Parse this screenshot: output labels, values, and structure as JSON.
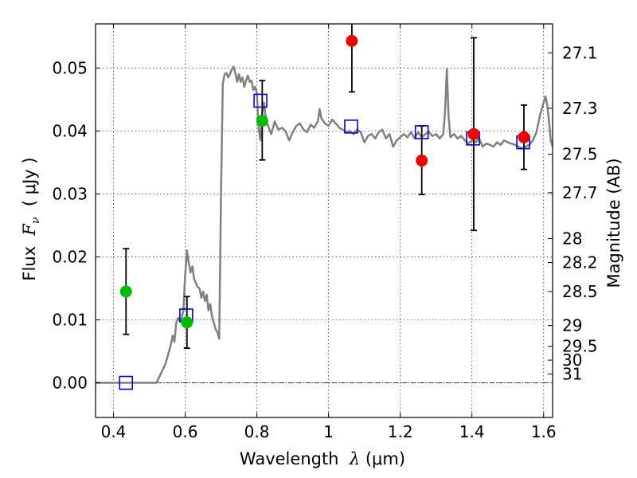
{
  "chart_data": {
    "type": "scatter",
    "xlabel_prefix": "Wavelength  ",
    "xlabel_symbol": "λ",
    "xlabel_unit": " (μm)",
    "ylabel_prefix": "Flux  ",
    "ylabel_symbol": "F",
    "ylabel_sub": "ν",
    "ylabel_unit": "  ( μJy )",
    "y2label": "Magnitude (AB)",
    "xlim": [
      0.35,
      1.625
    ],
    "ylim": [
      -0.0055,
      0.057
    ],
    "grid": true,
    "x_ticks": [
      0.4,
      0.6,
      0.8,
      1.0,
      1.2,
      1.4,
      1.6
    ],
    "x_tick_labels": [
      "0.4",
      "0.6",
      "0.8",
      "1",
      "1.2",
      "1.4",
      "1.6"
    ],
    "y_ticks": [
      0.0,
      0.01,
      0.02,
      0.03,
      0.04,
      0.05
    ],
    "y_tick_labels": [
      "0.00",
      "0.01",
      "0.02",
      "0.03",
      "0.04",
      "0.05"
    ],
    "y2_ticks": [
      {
        "label": "27.1",
        "flux": 0.0524
      },
      {
        "label": "27.3",
        "flux": 0.0436
      },
      {
        "label": "27.5",
        "flux": 0.0363
      },
      {
        "label": "27.7",
        "flux": 0.0302
      },
      {
        "label": "28",
        "flux": 0.0229
      },
      {
        "label": "28.2",
        "flux": 0.0191
      },
      {
        "label": "28.5",
        "flux": 0.0145
      },
      {
        "label": "29",
        "flux": 0.0091
      },
      {
        "label": "29.5",
        "flux": 0.0058
      },
      {
        "label": "30",
        "flux": 0.0036
      },
      {
        "label": "31",
        "flux": 0.0014
      }
    ],
    "colors": {
      "model": "#808080",
      "green": "#00bb00",
      "red": "#ee0000",
      "square": "#0000cc",
      "errorbar": "#000000"
    },
    "series": [
      {
        "kind": "line",
        "points": [
          [
            0.35,
            0.0
          ],
          [
            0.52,
            0.0
          ],
          [
            0.545,
            0.003
          ],
          [
            0.56,
            0.006
          ],
          [
            0.565,
            0.0075
          ],
          [
            0.57,
            0.0065
          ],
          [
            0.575,
            0.0095
          ],
          [
            0.58,
            0.0103
          ],
          [
            0.585,
            0.0098
          ],
          [
            0.59,
            0.0102
          ],
          [
            0.595,
            0.0115
          ],
          [
            0.6,
            0.017
          ],
          [
            0.605,
            0.021
          ],
          [
            0.61,
            0.019
          ],
          [
            0.615,
            0.0175
          ],
          [
            0.62,
            0.0185
          ],
          [
            0.625,
            0.0165
          ],
          [
            0.63,
            0.0158
          ],
          [
            0.635,
            0.0152
          ],
          [
            0.64,
            0.015
          ],
          [
            0.645,
            0.0135
          ],
          [
            0.65,
            0.0145
          ],
          [
            0.655,
            0.013
          ],
          [
            0.66,
            0.014
          ],
          [
            0.665,
            0.0115
          ],
          [
            0.67,
            0.0125
          ],
          [
            0.675,
            0.0105
          ],
          [
            0.68,
            0.0095
          ],
          [
            0.685,
            0.0085
          ],
          [
            0.69,
            0.008
          ],
          [
            0.695,
            0.007
          ],
          [
            0.7,
            0.03
          ],
          [
            0.705,
            0.0475
          ],
          [
            0.71,
            0.049
          ],
          [
            0.715,
            0.0492
          ],
          [
            0.72,
            0.0485
          ],
          [
            0.725,
            0.049
          ],
          [
            0.73,
            0.0498
          ],
          [
            0.735,
            0.0502
          ],
          [
            0.74,
            0.0492
          ],
          [
            0.745,
            0.0478
          ],
          [
            0.75,
            0.049
          ],
          [
            0.755,
            0.0478
          ],
          [
            0.76,
            0.0485
          ],
          [
            0.765,
            0.047
          ],
          [
            0.77,
            0.048
          ],
          [
            0.775,
            0.0488
          ],
          [
            0.78,
            0.0478
          ],
          [
            0.785,
            0.048
          ],
          [
            0.79,
            0.0465
          ],
          [
            0.795,
            0.047
          ],
          [
            0.8,
            0.046
          ],
          [
            0.805,
            0.0405
          ],
          [
            0.81,
            0.0385
          ],
          [
            0.815,
            0.043
          ],
          [
            0.82,
            0.0445
          ],
          [
            0.825,
            0.042
          ],
          [
            0.83,
            0.041
          ],
          [
            0.84,
            0.0395
          ],
          [
            0.85,
            0.0415
          ],
          [
            0.86,
            0.0402
          ],
          [
            0.87,
            0.0405
          ],
          [
            0.88,
            0.04
          ],
          [
            0.89,
            0.0385
          ],
          [
            0.9,
            0.0398
          ],
          [
            0.91,
            0.0408
          ],
          [
            0.92,
            0.0412
          ],
          [
            0.93,
            0.0402
          ],
          [
            0.94,
            0.0398
          ],
          [
            0.95,
            0.041
          ],
          [
            0.96,
            0.0405
          ],
          [
            0.97,
            0.0415
          ],
          [
            0.975,
            0.0435
          ],
          [
            0.98,
            0.042
          ],
          [
            0.99,
            0.0412
          ],
          [
            1.0,
            0.0408
          ],
          [
            1.01,
            0.0418
          ],
          [
            1.02,
            0.0412
          ],
          [
            1.03,
            0.0405
          ],
          [
            1.04,
            0.0402
          ],
          [
            1.05,
            0.0398
          ],
          [
            1.06,
            0.04
          ],
          [
            1.07,
            0.0395
          ],
          [
            1.08,
            0.0402
          ],
          [
            1.09,
            0.0398
          ],
          [
            1.1,
            0.0382
          ],
          [
            1.11,
            0.0392
          ],
          [
            1.12,
            0.0395
          ],
          [
            1.13,
            0.0388
          ],
          [
            1.14,
            0.0398
          ],
          [
            1.15,
            0.0402
          ],
          [
            1.16,
            0.0388
          ],
          [
            1.17,
            0.0395
          ],
          [
            1.18,
            0.0375
          ],
          [
            1.19,
            0.0385
          ],
          [
            1.2,
            0.039
          ],
          [
            1.21,
            0.0395
          ],
          [
            1.22,
            0.039
          ],
          [
            1.23,
            0.0398
          ],
          [
            1.24,
            0.0388
          ],
          [
            1.25,
            0.0398
          ],
          [
            1.26,
            0.039
          ],
          [
            1.27,
            0.0395
          ],
          [
            1.28,
            0.0398
          ],
          [
            1.29,
            0.0392
          ],
          [
            1.3,
            0.0395
          ],
          [
            1.31,
            0.0388
          ],
          [
            1.32,
            0.0395
          ],
          [
            1.325,
            0.043
          ],
          [
            1.33,
            0.0498
          ],
          [
            1.335,
            0.0422
          ],
          [
            1.34,
            0.039
          ],
          [
            1.35,
            0.0395
          ],
          [
            1.36,
            0.0388
          ],
          [
            1.37,
            0.0392
          ],
          [
            1.38,
            0.0385
          ],
          [
            1.39,
            0.038
          ],
          [
            1.4,
            0.0385
          ],
          [
            1.41,
            0.0382
          ],
          [
            1.42,
            0.0388
          ],
          [
            1.43,
            0.0375
          ],
          [
            1.44,
            0.038
          ],
          [
            1.45,
            0.0378
          ],
          [
            1.46,
            0.0375
          ],
          [
            1.47,
            0.0382
          ],
          [
            1.48,
            0.0378
          ],
          [
            1.49,
            0.0385
          ],
          [
            1.5,
            0.0382
          ],
          [
            1.51,
            0.038
          ],
          [
            1.52,
            0.0378
          ],
          [
            1.53,
            0.0375
          ],
          [
            1.54,
            0.0372
          ],
          [
            1.55,
            0.0375
          ],
          [
            1.56,
            0.0378
          ],
          [
            1.57,
            0.0385
          ],
          [
            1.58,
            0.0398
          ],
          [
            1.59,
            0.0425
          ],
          [
            1.6,
            0.0445
          ],
          [
            1.605,
            0.0455
          ],
          [
            1.61,
            0.0442
          ],
          [
            1.615,
            0.0415
          ],
          [
            1.62,
            0.0385
          ],
          [
            1.625,
            0.0375
          ]
        ]
      },
      {
        "kind": "green_points",
        "points": [
          {
            "x": 0.435,
            "y": 0.0145,
            "lo": 0.0077,
            "hi": 0.0213
          },
          {
            "x": 0.605,
            "y": 0.0096,
            "lo": 0.0055,
            "hi": 0.0137
          },
          {
            "x": 0.815,
            "y": 0.0416,
            "lo": 0.0354,
            "hi": 0.048
          }
        ]
      },
      {
        "kind": "red_points",
        "points": [
          {
            "x": 1.065,
            "y": 0.0543,
            "lo": 0.0462,
            "hi": 0.057
          },
          {
            "x": 1.26,
            "y": 0.0353,
            "lo": 0.0299,
            "hi": 0.0408
          },
          {
            "x": 1.405,
            "y": 0.0395,
            "lo": 0.0242,
            "hi": 0.0548
          },
          {
            "x": 1.545,
            "y": 0.039,
            "lo": 0.0339,
            "hi": 0.0441
          }
        ]
      },
      {
        "kind": "model_squares",
        "points": [
          {
            "x": 0.435,
            "y": 0.0
          },
          {
            "x": 0.603,
            "y": 0.0107
          },
          {
            "x": 0.81,
            "y": 0.0448
          },
          {
            "x": 1.063,
            "y": 0.0407
          },
          {
            "x": 1.26,
            "y": 0.0398
          },
          {
            "x": 1.403,
            "y": 0.0388
          },
          {
            "x": 1.543,
            "y": 0.0382
          }
        ]
      }
    ]
  }
}
